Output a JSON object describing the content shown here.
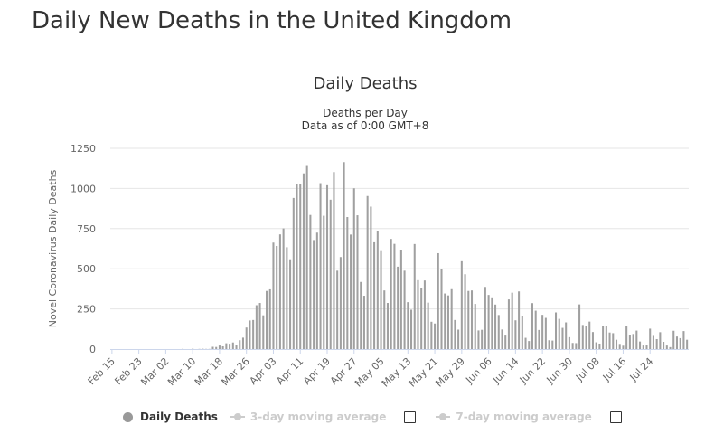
{
  "page": {
    "title": "Daily New Deaths in the United Kingdom"
  },
  "colors": {
    "bar": "#a0a0a0",
    "bar_stroke": "#9a9a9a",
    "grid": "#e6e6e6",
    "axis": "#ccd6eb",
    "inactive": "#cccccc",
    "text": "#333333"
  },
  "legend": {
    "items": [
      {
        "label": "Daily Deaths",
        "active": true,
        "icon": "circle-dot-icon"
      },
      {
        "label": "3-day moving average",
        "active": false,
        "icon": "line-dot-icon"
      },
      {
        "label": "7-day moving average",
        "active": false,
        "icon": "line-dot-icon"
      }
    ]
  },
  "chart_data": {
    "type": "bar",
    "title": "Daily Deaths",
    "subtitle": "Deaths per Day",
    "subtitle2": "Data as of 0:00 GMT+8",
    "xlabel": "",
    "ylabel": "Novel Coronavirus Daily Deaths",
    "ylim": [
      0,
      1250
    ],
    "yticks": [
      0,
      250,
      500,
      750,
      1000,
      1250
    ],
    "grid": true,
    "legend_position": "bottom",
    "x_start": "2020-02-15",
    "x_end": "2020-07-26",
    "xtick_labels": [
      "Feb 15",
      "Feb 23",
      "Mar 02",
      "Mar 10",
      "Mar 18",
      "Mar 26",
      "Apr 03",
      "Apr 11",
      "Apr 19",
      "Apr 27",
      "May 05",
      "May 13",
      "May 21",
      "May 29",
      "Jun 06",
      "Jun 14",
      "Jun 22",
      "Jun 30",
      "Jul 08",
      "Jul 16",
      "Jul 24"
    ],
    "series": [
      {
        "name": "Daily Deaths",
        "values": [
          0,
          0,
          0,
          0,
          0,
          0,
          0,
          0,
          0,
          0,
          0,
          0,
          0,
          0,
          0,
          0,
          0,
          0,
          0,
          0,
          0,
          1,
          0,
          0,
          2,
          0,
          1,
          2,
          1,
          1,
          14,
          13,
          22,
          17,
          36,
          33,
          41,
          28,
          55,
          71,
          134,
          178,
          181,
          273,
          287,
          210,
          362,
          372,
          663,
          642,
          714,
          751,
          634,
          559,
          941,
          1028,
          1027,
          1094,
          1140,
          835,
          679,
          725,
          1033,
          830,
          1020,
          930,
          1102,
          488,
          573,
          1164,
          822,
          713,
          1001,
          833,
          418,
          332,
          953,
          887,
          665,
          736,
          610,
          365,
          287,
          686,
          655,
          513,
          616,
          488,
          292,
          245,
          654,
          429,
          381,
          427,
          289,
          170,
          159,
          597,
          499,
          346,
          334,
          373,
          181,
          121,
          547,
          466,
          362,
          365,
          281,
          116,
          120,
          387,
          337,
          322,
          277,
          212,
          122,
          84,
          309,
          351,
          179,
          359,
          206,
          70,
          50,
          286,
          239,
          119,
          213,
          194,
          55,
          53,
          228,
          188,
          132,
          166,
          74,
          38,
          37,
          278,
          150,
          144,
          171,
          106,
          42,
          34,
          145,
          144,
          103,
          99,
          58,
          32,
          21,
          142,
          85,
          94,
          115,
          47,
          22,
          23,
          127,
          82,
          62,
          105,
          45,
          22,
          12,
          114,
          78,
          68,
          112,
          58
        ]
      }
    ]
  }
}
